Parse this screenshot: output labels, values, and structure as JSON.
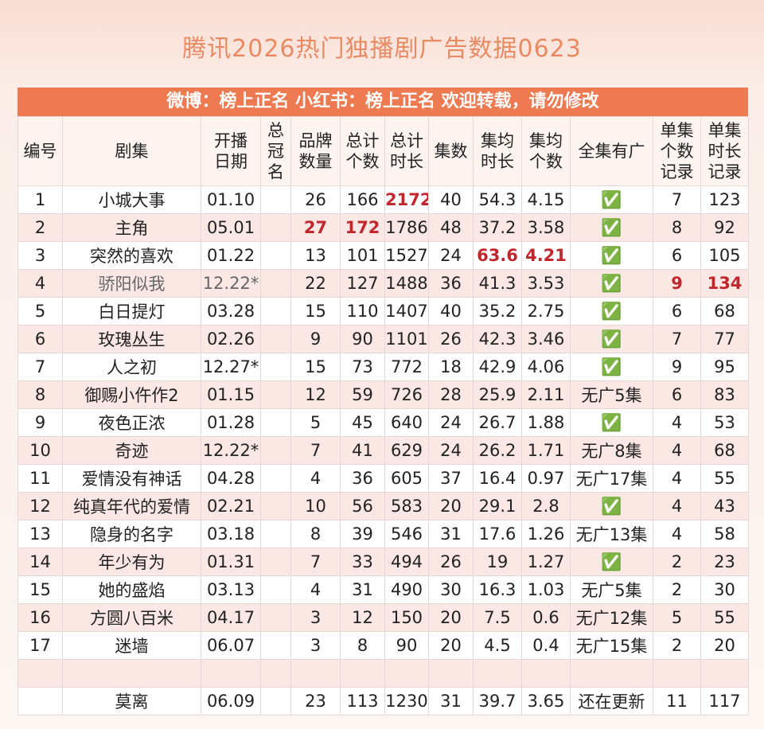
{
  "header": {
    "title": "腾讯2026热门独播剧广告数据0623",
    "banner": "微博：榜上正名 小红书：榜上正名 欢迎转载，请勿修改"
  },
  "table": {
    "columns": [
      "编号",
      "剧集",
      "开播日期",
      "总冠名",
      "品牌数量",
      "总计个数",
      "总计时长",
      "集数",
      "集均时长",
      "集均个数",
      "全集有广",
      "单集个数记录",
      "单集时长记录"
    ],
    "rows": [
      [
        1,
        "小城大事",
        "01.10",
        null,
        26,
        166,
        2172,
        40,
        54.3,
        4.15,
        "✅",
        7,
        123
      ],
      [
        2,
        "主角",
        "05.01",
        null,
        27,
        172,
        1786,
        48,
        37.2,
        3.58,
        "✅",
        8,
        92
      ],
      [
        3,
        "突然的喜欢",
        "01.22",
        null,
        13,
        101,
        1527,
        24,
        63.6,
        4.21,
        "✅",
        6,
        105
      ],
      [
        4,
        "骄阳似我",
        "12.22*",
        null,
        22,
        127,
        1488,
        36,
        41.3,
        3.53,
        "✅",
        9,
        134
      ],
      [
        5,
        "白日提灯",
        "03.28",
        null,
        15,
        110,
        1407,
        40,
        35.2,
        2.75,
        "✅",
        6,
        68
      ],
      [
        6,
        "玫瑰丛生",
        "02.26",
        null,
        9,
        90,
        1101,
        26,
        42.3,
        3.46,
        "✅",
        7,
        77
      ],
      [
        7,
        "人之初",
        "12.27*",
        null,
        15,
        73,
        772,
        18,
        42.9,
        4.06,
        "✅",
        9,
        95
      ],
      [
        8,
        "御赐小仵作2",
        "01.15",
        null,
        12,
        59,
        726,
        28,
        25.9,
        2.11,
        "无广5集",
        6,
        83
      ],
      [
        9,
        "夜色正浓",
        "01.28",
        null,
        5,
        45,
        640,
        24,
        26.7,
        1.88,
        "✅",
        4,
        53
      ],
      [
        10,
        "奇迹",
        "12.22*",
        null,
        7,
        41,
        629,
        24,
        26.2,
        1.71,
        "无广8集",
        4,
        68
      ],
      [
        11,
        "爱情没有神话",
        "04.28",
        null,
        4,
        36,
        605,
        37,
        16.4,
        0.97,
        "无广17集",
        4,
        55
      ],
      [
        12,
        "纯真年代的爱情",
        "02.21",
        null,
        10,
        56,
        583,
        20,
        29.1,
        2.8,
        "✅",
        4,
        43
      ],
      [
        13,
        "隐身的名字",
        "03.18",
        null,
        8,
        39,
        546,
        31,
        17.6,
        1.26,
        "无广13集",
        4,
        58
      ],
      [
        14,
        "年少有为",
        "01.31",
        null,
        7,
        33,
        494,
        26,
        19,
        1.27,
        "✅",
        2,
        23
      ],
      [
        15,
        "她的盛焰",
        "03.13",
        null,
        4,
        31,
        490,
        30,
        16.3,
        1.03,
        "无广5集",
        2,
        30
      ],
      [
        16,
        "方圆八百米",
        "04.17",
        null,
        3,
        12,
        150,
        20,
        7.5,
        0.6,
        "无广12集",
        5,
        55
      ],
      [
        17,
        "迷墙",
        "06.07",
        null,
        3,
        8,
        90,
        20,
        4.5,
        0.4,
        "无广15集",
        2,
        20
      ],
      [
        null,
        null,
        null,
        null,
        null,
        null,
        null,
        null,
        null,
        null,
        null,
        null,
        null
      ],
      [
        null,
        "莫离",
        "06.09",
        null,
        23,
        113,
        1230,
        31,
        39.7,
        3.65,
        "还在更新",
        11,
        117
      ]
    ]
  }
}
